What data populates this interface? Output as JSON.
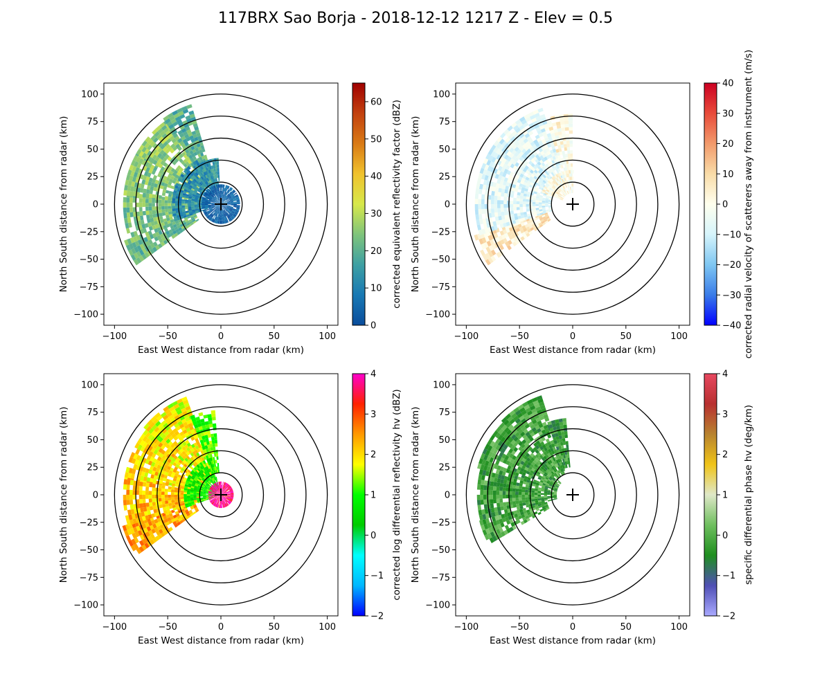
{
  "title": "117BRX Sao Borja - 2018-12-12 1217 Z -  Elev = 0.5",
  "chart_data": [
    {
      "type": "heatmap",
      "panel": "top-left",
      "field": "reflectivity",
      "xlabel": "East West distance from radar (km)",
      "ylabel": "North South distance from radar (km)",
      "xlim": [
        -110,
        110
      ],
      "ylim": [
        -110,
        110
      ],
      "xticks": [
        -100,
        -50,
        0,
        50,
        100
      ],
      "yticks": [
        -100,
        -75,
        -50,
        -25,
        0,
        25,
        50,
        75,
        100
      ],
      "range_rings_km": [
        20,
        40,
        60,
        80,
        100
      ],
      "radar_location": [
        0,
        0
      ],
      "colorbar": {
        "label": "corrected equivalent reflectivity factor (dBZ)",
        "vmin": 0,
        "vmax": 65,
        "ticks": [
          0,
          10,
          20,
          30,
          40,
          50,
          60
        ],
        "stops": [
          "#0a4d9c",
          "#1979b4",
          "#3ea0a3",
          "#7fc47b",
          "#d7e84a",
          "#f0c22d",
          "#d97a15",
          "#c2410f",
          "#a00000"
        ]
      },
      "echo_sectors": [
        {
          "az_from": 235,
          "az_to": 250,
          "r_from": 25,
          "r_to": 95,
          "value": 22
        },
        {
          "az_from": 250,
          "az_to": 275,
          "r_from": 20,
          "r_to": 92,
          "value": 24
        },
        {
          "az_from": 275,
          "az_to": 300,
          "r_from": 20,
          "r_to": 90,
          "value": 25
        },
        {
          "az_from": 300,
          "az_to": 325,
          "r_from": 20,
          "r_to": 92,
          "value": 26
        },
        {
          "az_from": 325,
          "az_to": 342,
          "r_from": 20,
          "r_to": 95,
          "value": 20
        },
        {
          "az_from": 250,
          "az_to": 330,
          "r_from": 10,
          "r_to": 45,
          "value": 12
        },
        {
          "az_from": 330,
          "az_to": 355,
          "r_from": 15,
          "r_to": 40,
          "value": 14
        },
        {
          "az_from": 0,
          "az_to": 360,
          "r_from": 0,
          "r_to": 18,
          "value": 4
        }
      ]
    },
    {
      "type": "heatmap",
      "panel": "top-right",
      "field": "velocity",
      "xlabel": "East West distance from radar (km)",
      "ylabel": "North South distance from radar (km)",
      "xlim": [
        -110,
        110
      ],
      "ylim": [
        -110,
        110
      ],
      "xticks": [
        -100,
        -50,
        0,
        50,
        100
      ],
      "yticks": [
        -100,
        -75,
        -50,
        -25,
        0,
        25,
        50,
        75,
        100
      ],
      "range_rings_km": [
        20,
        40,
        60,
        80,
        100
      ],
      "radar_location": [
        0,
        0
      ],
      "colorbar": {
        "label": "corrected radial velocity of scatterers away from instrument (m/s)",
        "vmin": -40,
        "vmax": 40,
        "ticks": [
          -40,
          -30,
          -20,
          -10,
          0,
          10,
          20,
          30,
          40
        ],
        "stops": [
          "#0000ff",
          "#3a7ce8",
          "#7fc7f2",
          "#d6f4fb",
          "#ffffee",
          "#f9dca8",
          "#f29a6b",
          "#e84b3a",
          "#cc0022"
        ]
      },
      "echo_sectors": [
        {
          "az_from": 235,
          "az_to": 252,
          "r_from": 25,
          "r_to": 95,
          "value": 6
        },
        {
          "az_from": 252,
          "az_to": 342,
          "r_from": 20,
          "r_to": 92,
          "value": -7
        },
        {
          "az_from": 342,
          "az_to": 358,
          "r_from": 25,
          "r_to": 80,
          "value": 2
        },
        {
          "az_from": 290,
          "az_to": 360,
          "r_from": 10,
          "r_to": 30,
          "value": 1
        }
      ]
    },
    {
      "type": "heatmap",
      "panel": "bottom-left",
      "field": "differential_reflectivity",
      "xlabel": "East West distance from radar (km)",
      "ylabel": "North South distance from radar (km)",
      "xlim": [
        -110,
        110
      ],
      "ylim": [
        -110,
        110
      ],
      "xticks": [
        -100,
        -50,
        0,
        50,
        100
      ],
      "yticks": [
        -100,
        -75,
        -50,
        -25,
        0,
        25,
        50,
        75,
        100
      ],
      "range_rings_km": [
        20,
        40,
        60,
        80,
        100
      ],
      "radar_location": [
        0,
        0
      ],
      "colorbar": {
        "label": "corrected log differential reflectivity hv (dBZ)",
        "vmin": -2,
        "vmax": 4,
        "ticks": [
          -2,
          -1,
          0,
          1,
          2,
          3,
          4
        ],
        "stops": [
          "#0000ff",
          "#00b7ff",
          "#00ffff",
          "#00cc00",
          "#00ff00",
          "#ffff00",
          "#ff9900",
          "#ff2200",
          "#ff00cc"
        ]
      },
      "echo_sectors": [
        {
          "az_from": 235,
          "az_to": 252,
          "r_from": 25,
          "r_to": 95,
          "value": 2.4
        },
        {
          "az_from": 252,
          "az_to": 280,
          "r_from": 20,
          "r_to": 92,
          "value": 2.2
        },
        {
          "az_from": 280,
          "az_to": 310,
          "r_from": 20,
          "r_to": 90,
          "value": 2.0
        },
        {
          "az_from": 310,
          "az_to": 338,
          "r_from": 20,
          "r_to": 95,
          "value": 1.8
        },
        {
          "az_from": 338,
          "az_to": 356,
          "r_from": 20,
          "r_to": 75,
          "value": 1.2
        },
        {
          "az_from": 250,
          "az_to": 345,
          "r_from": 5,
          "r_to": 35,
          "value": 0.9
        },
        {
          "az_from": 0,
          "az_to": 360,
          "r_from": 0,
          "r_to": 12,
          "value": 3.8
        }
      ]
    },
    {
      "type": "heatmap",
      "panel": "bottom-right",
      "field": "specific_differential_phase",
      "xlabel": "East West distance from radar (km)",
      "ylabel": "North South distance from radar (km)",
      "xlim": [
        -110,
        110
      ],
      "ylim": [
        -110,
        110
      ],
      "xticks": [
        -100,
        -50,
        0,
        50,
        100
      ],
      "yticks": [
        -100,
        -75,
        -50,
        -25,
        0,
        25,
        50,
        75,
        100
      ],
      "range_rings_km": [
        20,
        40,
        60,
        80,
        100
      ],
      "radar_location": [
        0,
        0
      ],
      "colorbar": {
        "label": "specific differential phase hv (deg/km)",
        "vmin": -2,
        "vmax": 4,
        "ticks": [
          -2,
          -1,
          0,
          1,
          2,
          3,
          4
        ],
        "stops": [
          "#a9a9ff",
          "#5050b5",
          "#1f8f1f",
          "#6fbf5f",
          "#dfe8c8",
          "#f0c418",
          "#b8832f",
          "#b83030",
          "#e84860"
        ]
      },
      "echo_sectors": [
        {
          "az_from": 240,
          "az_to": 255,
          "r_from": 25,
          "r_to": 90,
          "value": -0.1
        },
        {
          "az_from": 255,
          "az_to": 285,
          "r_from": 15,
          "r_to": 90,
          "value": -0.2
        },
        {
          "az_from": 285,
          "az_to": 315,
          "r_from": 15,
          "r_to": 92,
          "value": -0.2
        },
        {
          "az_from": 315,
          "az_to": 340,
          "r_from": 20,
          "r_to": 95,
          "value": -0.15
        },
        {
          "az_from": 340,
          "az_to": 355,
          "r_from": 25,
          "r_to": 70,
          "value": -0.3
        }
      ]
    }
  ]
}
